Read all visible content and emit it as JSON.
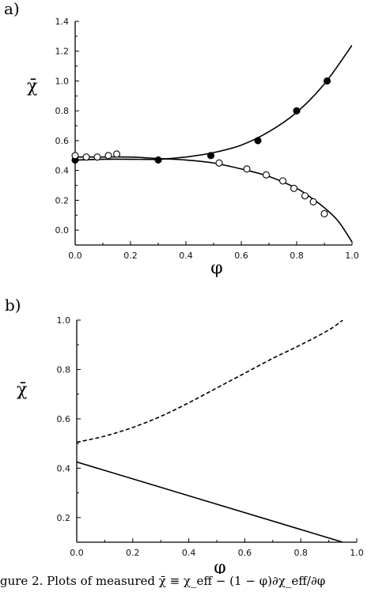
{
  "caption": "gure 2. Plots of measured χ̄ ≡ χ_eff − (1 − φ)∂χ_eff/∂φ",
  "colors": {
    "ink": "#000000",
    "background": "#ffffff"
  },
  "chart_data": [
    {
      "panel_label": "a)",
      "type": "scatter",
      "xlabel": "φ",
      "ylabel": "χ̄",
      "xlim": [
        0.0,
        1.0
      ],
      "ylim": [
        -0.1,
        1.4
      ],
      "xticks": [
        0.0,
        0.2,
        0.4,
        0.6,
        0.8,
        1.0
      ],
      "yticks": [
        0.0,
        0.2,
        0.4,
        0.6,
        0.8,
        1.0,
        1.2,
        1.4
      ],
      "xtick_labels": [
        "0.0",
        "0.2",
        "0.4",
        "0.6",
        "0.8",
        "1.0"
      ],
      "ytick_labels": [
        "0.0",
        "0.2",
        "0.4",
        "0.6",
        "0.8",
        "1.0",
        "1.2",
        "1.4"
      ],
      "grid": false,
      "series": [
        {
          "marker": "filled-circle",
          "points": [
            [
              0.0,
              0.47
            ],
            [
              0.3,
              0.47
            ],
            [
              0.49,
              0.5
            ],
            [
              0.66,
              0.6
            ],
            [
              0.8,
              0.8
            ],
            [
              0.91,
              1.0
            ]
          ]
        },
        {
          "marker": "open-circle",
          "points": [
            [
              0.0,
              0.5
            ],
            [
              0.04,
              0.49
            ],
            [
              0.08,
              0.49
            ],
            [
              0.12,
              0.5
            ],
            [
              0.15,
              0.51
            ],
            [
              0.52,
              0.45
            ],
            [
              0.62,
              0.41
            ],
            [
              0.69,
              0.37
            ],
            [
              0.75,
              0.33
            ],
            [
              0.79,
              0.28
            ],
            [
              0.83,
              0.23
            ],
            [
              0.86,
              0.19
            ],
            [
              0.9,
              0.11
            ]
          ]
        },
        {
          "line": "solid",
          "points": [
            [
              0.0,
              0.47
            ],
            [
              0.1,
              0.475
            ],
            [
              0.2,
              0.475
            ],
            [
              0.3,
              0.475
            ],
            [
              0.4,
              0.49
            ],
            [
              0.5,
              0.52
            ],
            [
              0.6,
              0.57
            ],
            [
              0.7,
              0.66
            ],
            [
              0.8,
              0.79
            ],
            [
              0.9,
              0.98
            ],
            [
              1.0,
              1.24
            ]
          ]
        },
        {
          "line": "solid",
          "points": [
            [
              0.0,
              0.49
            ],
            [
              0.1,
              0.49
            ],
            [
              0.2,
              0.49
            ],
            [
              0.3,
              0.48
            ],
            [
              0.4,
              0.47
            ],
            [
              0.5,
              0.45
            ],
            [
              0.6,
              0.41
            ],
            [
              0.7,
              0.36
            ],
            [
              0.8,
              0.28
            ],
            [
              0.85,
              0.22
            ],
            [
              0.9,
              0.15
            ],
            [
              0.95,
              0.06
            ],
            [
              1.0,
              -0.08
            ]
          ]
        }
      ]
    },
    {
      "panel_label": "b)",
      "type": "line",
      "xlabel": "φ",
      "ylabel": "χ̄",
      "xlim": [
        0.0,
        1.0
      ],
      "ylim": [
        0.1,
        1.0
      ],
      "xticks": [
        0.0,
        0.2,
        0.4,
        0.6,
        0.8,
        1.0
      ],
      "yticks": [
        0.2,
        0.4,
        0.6,
        0.8,
        1.0
      ],
      "xtick_labels": [
        "0.0",
        "0.2",
        "0.4",
        "0.6",
        "0.8",
        "1.0"
      ],
      "ytick_labels": [
        "0.2",
        "0.4",
        "0.6",
        "0.8",
        "1.0"
      ],
      "grid": false,
      "series": [
        {
          "line": "dashed",
          "points": [
            [
              0.0,
              0.505
            ],
            [
              0.1,
              0.53
            ],
            [
              0.2,
              0.565
            ],
            [
              0.3,
              0.61
            ],
            [
              0.4,
              0.665
            ],
            [
              0.5,
              0.725
            ],
            [
              0.6,
              0.785
            ],
            [
              0.7,
              0.845
            ],
            [
              0.8,
              0.9
            ],
            [
              0.9,
              0.96
            ],
            [
              0.95,
              1.0
            ]
          ]
        },
        {
          "line": "solid",
          "points": [
            [
              0.0,
              0.425
            ],
            [
              0.95,
              0.1
            ]
          ]
        }
      ]
    }
  ]
}
